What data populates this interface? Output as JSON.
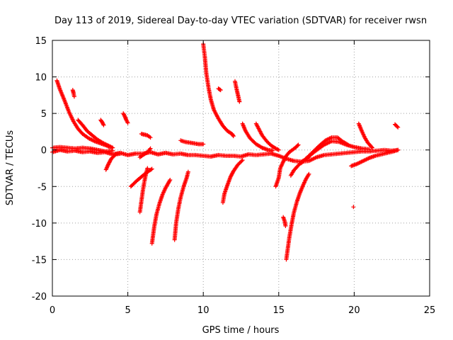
{
  "chart_data": {
    "type": "scatter",
    "title": "Day 113 of 2019, Sidereal Day-to-day VTEC variation (SDTVAR) for receiver rwsn",
    "xlabel": "GPS time / hours",
    "ylabel": "SDTVAR / TECUs",
    "xlim": [
      0,
      25
    ],
    "ylim": [
      -20,
      15
    ],
    "grid": true,
    "marker": "plus",
    "color": "#ff0000",
    "x_ticks": [
      0,
      5,
      10,
      15,
      20,
      25
    ],
    "x_tick_labels": [
      "0",
      "5",
      "10",
      "15",
      "20",
      "25"
    ],
    "y_ticks": [
      -20,
      -15,
      -10,
      -5,
      0,
      5,
      10,
      15
    ],
    "y_tick_labels": [
      "-20",
      "-15",
      "-10",
      "-5",
      "0",
      "5",
      "10",
      "15"
    ],
    "segments": [
      {
        "name": "baseline",
        "points": [
          [
            0.0,
            -0.3
          ],
          [
            0.5,
            0.0
          ],
          [
            1.0,
            -0.2
          ],
          [
            1.5,
            -0.1
          ],
          [
            2.0,
            -0.3
          ],
          [
            2.5,
            -0.2
          ],
          [
            3.0,
            -0.4
          ],
          [
            3.5,
            -0.3
          ],
          [
            4.0,
            -0.6
          ],
          [
            4.5,
            -0.4
          ],
          [
            5.0,
            -0.7
          ],
          [
            5.5,
            -0.5
          ],
          [
            6.0,
            -0.5
          ],
          [
            6.5,
            -0.3
          ],
          [
            7.0,
            -0.6
          ],
          [
            7.5,
            -0.4
          ],
          [
            8.0,
            -0.6
          ],
          [
            8.5,
            -0.5
          ],
          [
            9.0,
            -0.7
          ],
          [
            9.5,
            -0.7
          ],
          [
            10.0,
            -0.8
          ],
          [
            10.5,
            -0.9
          ],
          [
            11.0,
            -0.7
          ],
          [
            11.5,
            -0.8
          ],
          [
            12.0,
            -0.8
          ],
          [
            12.5,
            -0.9
          ],
          [
            13.0,
            -0.6
          ],
          [
            13.5,
            -0.7
          ],
          [
            14.0,
            -0.6
          ],
          [
            14.5,
            -0.5
          ],
          [
            15.0,
            -0.8
          ],
          [
            15.5,
            -1.2
          ],
          [
            16.0,
            -1.5
          ],
          [
            16.5,
            -1.6
          ],
          [
            17.0,
            -1.5
          ],
          [
            17.5,
            -1.0
          ],
          [
            18.0,
            -0.7
          ],
          [
            18.5,
            -0.6
          ],
          [
            19.0,
            -0.5
          ],
          [
            19.5,
            -0.4
          ],
          [
            20.0,
            -0.3
          ],
          [
            20.5,
            -0.2
          ],
          [
            21.0,
            -0.2
          ],
          [
            21.5,
            -0.1
          ],
          [
            22.0,
            0.0
          ],
          [
            22.5,
            -0.1
          ],
          [
            22.9,
            0.0
          ]
        ]
      },
      {
        "name": "band-0-4",
        "points": [
          [
            0.0,
            0.3
          ],
          [
            0.5,
            0.4
          ],
          [
            1.0,
            0.3
          ],
          [
            1.5,
            0.2
          ],
          [
            2.0,
            0.3
          ],
          [
            2.5,
            0.2
          ],
          [
            3.0,
            0.0
          ],
          [
            3.5,
            -0.2
          ],
          [
            4.0,
            -0.1
          ]
        ]
      },
      {
        "name": "arc-0.3-3.8",
        "points": [
          [
            0.3,
            9.5
          ],
          [
            0.5,
            8.3
          ],
          [
            0.8,
            6.8
          ],
          [
            1.1,
            5.2
          ],
          [
            1.4,
            3.9
          ],
          [
            1.7,
            2.9
          ],
          [
            2.0,
            2.2
          ],
          [
            2.4,
            1.6
          ],
          [
            2.8,
            1.2
          ],
          [
            3.2,
            0.9
          ],
          [
            3.6,
            0.6
          ],
          [
            3.8,
            0.4
          ]
        ]
      },
      {
        "name": "arc-1.7-4",
        "points": [
          [
            1.7,
            4.1
          ],
          [
            2.0,
            3.4
          ],
          [
            2.3,
            2.6
          ],
          [
            2.7,
            1.9
          ],
          [
            3.0,
            1.4
          ],
          [
            3.4,
            0.9
          ],
          [
            3.8,
            0.5
          ],
          [
            4.0,
            0.3
          ]
        ]
      },
      {
        "name": "short-1.4",
        "points": [
          [
            1.35,
            8.2
          ],
          [
            1.4,
            7.8
          ],
          [
            1.45,
            7.3
          ]
        ]
      },
      {
        "name": "short-3.3",
        "points": [
          [
            3.2,
            4.1
          ],
          [
            3.3,
            3.8
          ],
          [
            3.4,
            3.4
          ]
        ]
      },
      {
        "name": "drop-3.6-4.5",
        "points": [
          [
            3.55,
            -2.7
          ],
          [
            3.7,
            -2.0
          ],
          [
            3.9,
            -1.2
          ],
          [
            4.2,
            -0.6
          ],
          [
            4.5,
            -0.5
          ]
        ]
      },
      {
        "name": "short-4.8",
        "points": [
          [
            4.7,
            5.0
          ],
          [
            4.8,
            4.6
          ],
          [
            4.9,
            4.1
          ],
          [
            5.0,
            3.7
          ]
        ]
      },
      {
        "name": "arc-5.9-6.7",
        "points": [
          [
            5.9,
            2.2
          ],
          [
            6.1,
            2.1
          ],
          [
            6.3,
            2.0
          ],
          [
            6.5,
            1.7
          ]
        ]
      },
      {
        "name": "hook-5.2-6.6",
        "points": [
          [
            5.2,
            -5.0
          ],
          [
            5.6,
            -4.2
          ],
          [
            6.0,
            -3.5
          ],
          [
            6.3,
            -3.0
          ],
          [
            6.6,
            -2.6
          ]
        ]
      },
      {
        "name": "drop-6.5",
        "points": [
          [
            5.8,
            -1.0
          ],
          [
            6.0,
            -0.7
          ],
          [
            6.3,
            -0.3
          ],
          [
            6.5,
            0.2
          ]
        ]
      },
      {
        "name": "dive-5.8-6.3",
        "points": [
          [
            5.8,
            -8.5
          ],
          [
            5.9,
            -7.0
          ],
          [
            6.0,
            -5.5
          ],
          [
            6.1,
            -4.3
          ],
          [
            6.2,
            -3.3
          ],
          [
            6.3,
            -2.5
          ]
        ]
      },
      {
        "name": "dive-6.6-7.8",
        "points": [
          [
            6.6,
            -12.8
          ],
          [
            6.75,
            -10.5
          ],
          [
            6.9,
            -8.8
          ],
          [
            7.1,
            -7.3
          ],
          [
            7.3,
            -6.1
          ],
          [
            7.5,
            -5.2
          ],
          [
            7.8,
            -4.1
          ]
        ]
      },
      {
        "name": "dive-8.1-9.0",
        "points": [
          [
            8.1,
            -12.3
          ],
          [
            8.2,
            -10.0
          ],
          [
            8.35,
            -8.0
          ],
          [
            8.5,
            -6.5
          ],
          [
            8.7,
            -5.0
          ],
          [
            8.9,
            -3.8
          ],
          [
            9.0,
            -3.0
          ]
        ]
      },
      {
        "name": "hump-8.5-10",
        "points": [
          [
            8.5,
            1.3
          ],
          [
            8.8,
            1.1
          ],
          [
            9.1,
            1.0
          ],
          [
            9.4,
            0.9
          ],
          [
            9.7,
            0.8
          ],
          [
            10.0,
            0.8
          ]
        ]
      },
      {
        "name": "arc-10.0-12.0",
        "points": [
          [
            10.0,
            14.5
          ],
          [
            10.1,
            12.8
          ],
          [
            10.2,
            10.5
          ],
          [
            10.35,
            8.5
          ],
          [
            10.5,
            6.9
          ],
          [
            10.7,
            5.5
          ],
          [
            11.0,
            4.3
          ],
          [
            11.3,
            3.3
          ],
          [
            11.6,
            2.6
          ],
          [
            11.9,
            2.2
          ],
          [
            12.0,
            1.9
          ]
        ]
      },
      {
        "name": "short-11.1",
        "points": [
          [
            11.0,
            8.4
          ],
          [
            11.15,
            8.2
          ]
        ]
      },
      {
        "name": "short-12.2",
        "points": [
          [
            12.1,
            9.4
          ],
          [
            12.2,
            8.4
          ],
          [
            12.3,
            7.5
          ],
          [
            12.4,
            6.6
          ]
        ]
      },
      {
        "name": "dive-11.3-12.6",
        "points": [
          [
            11.3,
            -7.2
          ],
          [
            11.4,
            -6.0
          ],
          [
            11.6,
            -4.8
          ],
          [
            11.8,
            -3.7
          ],
          [
            12.0,
            -2.9
          ],
          [
            12.3,
            -2.0
          ],
          [
            12.6,
            -1.4
          ]
        ]
      },
      {
        "name": "arc-12.7-14.5",
        "points": [
          [
            12.6,
            3.6
          ],
          [
            12.8,
            2.6
          ],
          [
            13.1,
            1.6
          ],
          [
            13.5,
            0.8
          ],
          [
            13.9,
            0.3
          ],
          [
            14.3,
            0.0
          ],
          [
            14.6,
            -0.1
          ]
        ]
      },
      {
        "name": "arc-13.5-15",
        "points": [
          [
            13.5,
            3.6
          ],
          [
            13.7,
            2.8
          ],
          [
            13.9,
            2.0
          ],
          [
            14.2,
            1.2
          ],
          [
            14.5,
            0.6
          ],
          [
            14.8,
            0.2
          ],
          [
            15.0,
            0.0
          ]
        ]
      },
      {
        "name": "cluster-14.8-16",
        "points": [
          [
            14.8,
            -5.0
          ],
          [
            15.0,
            -3.8
          ],
          [
            15.1,
            -2.5
          ],
          [
            15.3,
            -1.6
          ],
          [
            15.5,
            -0.8
          ],
          [
            15.7,
            -0.3
          ],
          [
            15.9,
            0.0
          ],
          [
            16.1,
            0.3
          ],
          [
            16.3,
            0.7
          ]
        ]
      },
      {
        "name": "short-15.3",
        "points": [
          [
            15.3,
            -9.2
          ],
          [
            15.4,
            -9.8
          ],
          [
            15.45,
            -10.4
          ]
        ]
      },
      {
        "name": "dive-15.5-16.6",
        "points": [
          [
            15.5,
            -15.0
          ],
          [
            15.6,
            -13.5
          ],
          [
            15.7,
            -12.0
          ],
          [
            15.85,
            -10.2
          ],
          [
            16.0,
            -8.6
          ],
          [
            16.2,
            -7.1
          ],
          [
            16.4,
            -5.9
          ],
          [
            16.6,
            -4.9
          ],
          [
            16.8,
            -4.0
          ],
          [
            17.0,
            -3.3
          ]
        ]
      },
      {
        "name": "dive-15.8-17",
        "points": [
          [
            15.8,
            -3.5
          ],
          [
            16.0,
            -2.8
          ],
          [
            16.3,
            -2.1
          ],
          [
            16.6,
            -1.5
          ],
          [
            17.0,
            -1.0
          ]
        ]
      },
      {
        "name": "rise-16.5-19.5",
        "points": [
          [
            16.5,
            -1.8
          ],
          [
            16.9,
            -1.0
          ],
          [
            17.3,
            -0.2
          ],
          [
            17.7,
            0.6
          ],
          [
            18.1,
            1.3
          ],
          [
            18.5,
            1.7
          ],
          [
            18.9,
            1.7
          ],
          [
            19.2,
            1.2
          ],
          [
            19.6,
            0.7
          ]
        ]
      },
      {
        "name": "rise-16.8-21",
        "points": [
          [
            16.8,
            -1.2
          ],
          [
            17.4,
            -0.2
          ],
          [
            18.0,
            0.7
          ],
          [
            18.5,
            1.2
          ],
          [
            19.0,
            1.1
          ],
          [
            19.5,
            0.7
          ],
          [
            20.0,
            0.4
          ],
          [
            20.5,
            0.2
          ],
          [
            21.0,
            0.1
          ]
        ]
      },
      {
        "name": "rise-19.8-22.9",
        "points": [
          [
            19.8,
            -2.2
          ],
          [
            20.2,
            -1.9
          ],
          [
            20.6,
            -1.5
          ],
          [
            21.0,
            -1.1
          ],
          [
            21.4,
            -0.8
          ],
          [
            21.8,
            -0.6
          ],
          [
            22.2,
            -0.4
          ],
          [
            22.6,
            -0.2
          ],
          [
            22.9,
            0.0
          ]
        ]
      },
      {
        "name": "arc-20.3-21.2",
        "points": [
          [
            20.3,
            3.6
          ],
          [
            20.5,
            2.6
          ],
          [
            20.7,
            1.7
          ],
          [
            20.9,
            1.0
          ],
          [
            21.2,
            0.3
          ]
        ]
      },
      {
        "name": "short-22.8",
        "points": [
          [
            22.7,
            3.5
          ],
          [
            22.8,
            3.3
          ],
          [
            22.9,
            3.1
          ]
        ]
      },
      {
        "name": "isolated-19.9",
        "points": [
          [
            19.95,
            -7.8
          ]
        ]
      }
    ]
  }
}
